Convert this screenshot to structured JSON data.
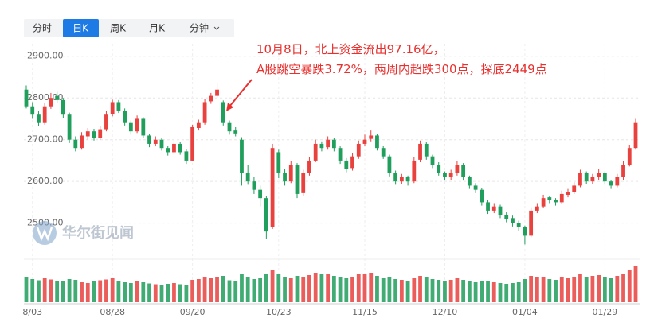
{
  "tabs": [
    "分时",
    "日K",
    "周K",
    "月K",
    "分钟"
  ],
  "watermark": "华尔街见闻",
  "chart_data": {
    "type": "candlestick",
    "annotation": [
      "10月8日，北上资金流出97.16亿，",
      "A股跳空暴跌3.72%，两周内超跌300点，探底2449点"
    ],
    "up_color": "#e8413e",
    "down_color": "#1f9e5c",
    "grid": true,
    "ylim": [
      2425,
      2930
    ],
    "yticks": [
      {
        "value": 2500,
        "label": "2500.00"
      },
      {
        "value": 2600,
        "label": "2600.00"
      },
      {
        "value": 2700,
        "label": "2700.00"
      },
      {
        "value": 2800,
        "label": "2800.00"
      },
      {
        "value": 2900,
        "label": "2900.00"
      }
    ],
    "vlim": [
      0,
      100
    ],
    "categories": [
      null,
      "8/03",
      null,
      null,
      null,
      null,
      null,
      null,
      null,
      null,
      null,
      null,
      null,
      null,
      "08/28",
      null,
      null,
      null,
      null,
      null,
      null,
      null,
      null,
      null,
      null,
      null,
      null,
      "09/20",
      null,
      null,
      null,
      null,
      null,
      null,
      null,
      null,
      null,
      null,
      null,
      null,
      null,
      "10/23",
      null,
      null,
      null,
      null,
      null,
      null,
      null,
      null,
      null,
      null,
      null,
      null,
      null,
      "11/15",
      null,
      null,
      null,
      null,
      null,
      null,
      null,
      null,
      null,
      null,
      null,
      null,
      "12/10",
      null,
      null,
      null,
      null,
      null,
      null,
      null,
      null,
      null,
      null,
      null,
      null,
      "01/04",
      null,
      null,
      null,
      null,
      null,
      null,
      null,
      null,
      null,
      null,
      null,
      null,
      "01/29",
      null,
      null,
      null,
      null,
      null
    ],
    "ohlc": [
      [
        2820,
        2830,
        2775,
        2780
      ],
      [
        2780,
        2790,
        2750,
        2760
      ],
      [
        2760,
        2768,
        2732,
        2740
      ],
      [
        2740,
        2788,
        2736,
        2780
      ],
      [
        2780,
        2812,
        2774,
        2800
      ],
      [
        2805,
        2815,
        2788,
        2795
      ],
      [
        2795,
        2800,
        2752,
        2760
      ],
      [
        2760,
        2765,
        2692,
        2700
      ],
      [
        2700,
        2708,
        2672,
        2680
      ],
      [
        2680,
        2718,
        2676,
        2710
      ],
      [
        2708,
        2728,
        2700,
        2720
      ],
      [
        2720,
        2726,
        2698,
        2705
      ],
      [
        2705,
        2732,
        2700,
        2725
      ],
      [
        2725,
        2768,
        2720,
        2760
      ],
      [
        2762,
        2796,
        2756,
        2790
      ],
      [
        2790,
        2795,
        2764,
        2770
      ],
      [
        2770,
        2775,
        2734,
        2740
      ],
      [
        2740,
        2746,
        2712,
        2720
      ],
      [
        2720,
        2758,
        2716,
        2750
      ],
      [
        2750,
        2754,
        2704,
        2710
      ],
      [
        2710,
        2714,
        2682,
        2690
      ],
      [
        2690,
        2708,
        2684,
        2700
      ],
      [
        2700,
        2704,
        2674,
        2680
      ],
      [
        2680,
        2686,
        2662,
        2670
      ],
      [
        2670,
        2697,
        2666,
        2690
      ],
      [
        2690,
        2694,
        2664,
        2670
      ],
      [
        2672,
        2678,
        2642,
        2650
      ],
      [
        2650,
        2736,
        2648,
        2730
      ],
      [
        2728,
        2748,
        2722,
        2740
      ],
      [
        2740,
        2798,
        2736,
        2790
      ],
      [
        2792,
        2812,
        2786,
        2805
      ],
      [
        2805,
        2836,
        2800,
        2820
      ],
      [
        2790,
        2794,
        2734,
        2740
      ],
      [
        2740,
        2746,
        2712,
        2720
      ],
      [
        2722,
        2730,
        2708,
        2715
      ],
      [
        2700,
        2706,
        2590,
        2620
      ],
      [
        2620,
        2640,
        2592,
        2600
      ],
      [
        2600,
        2610,
        2570,
        2580
      ],
      [
        2580,
        2590,
        2540,
        2560
      ],
      [
        2560,
        2565,
        2462,
        2480
      ],
      [
        2490,
        2690,
        2486,
        2680
      ],
      [
        2670,
        2676,
        2608,
        2620
      ],
      [
        2620,
        2630,
        2590,
        2600
      ],
      [
        2600,
        2648,
        2596,
        2640
      ],
      [
        2640,
        2644,
        2560,
        2570
      ],
      [
        2572,
        2628,
        2566,
        2620
      ],
      [
        2620,
        2658,
        2614,
        2650
      ],
      [
        2650,
        2700,
        2646,
        2690
      ],
      [
        2690,
        2696,
        2672,
        2680
      ],
      [
        2682,
        2708,
        2676,
        2700
      ],
      [
        2700,
        2704,
        2672,
        2680
      ],
      [
        2680,
        2684,
        2642,
        2650
      ],
      [
        2650,
        2656,
        2622,
        2630
      ],
      [
        2632,
        2668,
        2626,
        2660
      ],
      [
        2660,
        2698,
        2654,
        2690
      ],
      [
        2690,
        2712,
        2684,
        2700
      ],
      [
        2702,
        2722,
        2696,
        2710
      ],
      [
        2710,
        2714,
        2674,
        2680
      ],
      [
        2680,
        2686,
        2654,
        2660
      ],
      [
        2660,
        2664,
        2612,
        2620
      ],
      [
        2620,
        2626,
        2592,
        2600
      ],
      [
        2600,
        2618,
        2594,
        2610
      ],
      [
        2610,
        2614,
        2590,
        2600
      ],
      [
        2600,
        2658,
        2596,
        2650
      ],
      [
        2652,
        2698,
        2646,
        2690
      ],
      [
        2690,
        2694,
        2652,
        2660
      ],
      [
        2660,
        2664,
        2632,
        2640
      ],
      [
        2640,
        2646,
        2614,
        2620
      ],
      [
        2620,
        2624,
        2602,
        2610
      ],
      [
        2610,
        2628,
        2604,
        2620
      ],
      [
        2620,
        2648,
        2614,
        2640
      ],
      [
        2640,
        2644,
        2602,
        2610
      ],
      [
        2610,
        2614,
        2582,
        2590
      ],
      [
        2590,
        2596,
        2572,
        2580
      ],
      [
        2580,
        2584,
        2542,
        2550
      ],
      [
        2550,
        2556,
        2522,
        2530
      ],
      [
        2530,
        2548,
        2524,
        2540
      ],
      [
        2540,
        2544,
        2512,
        2520
      ],
      [
        2520,
        2526,
        2502,
        2510
      ],
      [
        2512,
        2518,
        2492,
        2500
      ],
      [
        2500,
        2506,
        2482,
        2490
      ],
      [
        2490,
        2494,
        2449,
        2470
      ],
      [
        2470,
        2538,
        2466,
        2530
      ],
      [
        2530,
        2548,
        2524,
        2540
      ],
      [
        2540,
        2568,
        2536,
        2560
      ],
      [
        2562,
        2566,
        2548,
        2555
      ],
      [
        2556,
        2560,
        2542,
        2550
      ],
      [
        2550,
        2578,
        2546,
        2570
      ],
      [
        2568,
        2582,
        2562,
        2575
      ],
      [
        2575,
        2598,
        2570,
        2590
      ],
      [
        2590,
        2628,
        2586,
        2620
      ],
      [
        2620,
        2624,
        2594,
        2600
      ],
      [
        2600,
        2618,
        2594,
        2610
      ],
      [
        2610,
        2630,
        2604,
        2620
      ],
      [
        2620,
        2624,
        2592,
        2600
      ],
      [
        2600,
        2604,
        2582,
        2590
      ],
      [
        2590,
        2618,
        2586,
        2610
      ],
      [
        2610,
        2648,
        2604,
        2640
      ],
      [
        2640,
        2688,
        2636,
        2680
      ],
      [
        2680,
        2750,
        2676,
        2740
      ]
    ],
    "volume": [
      62,
      58,
      55,
      60,
      57,
      54,
      52,
      58,
      56,
      50,
      48,
      52,
      55,
      57,
      60,
      54,
      50,
      48,
      52,
      50,
      47,
      45,
      44,
      46,
      48,
      45,
      44,
      56,
      58,
      62,
      60,
      64,
      66,
      55,
      52,
      70,
      64,
      58,
      60,
      72,
      80,
      72,
      62,
      60,
      66,
      64,
      68,
      74,
      70,
      72,
      66,
      62,
      60,
      64,
      70,
      72,
      74,
      66,
      60,
      62,
      58,
      56,
      54,
      60,
      66,
      62,
      58,
      56,
      54,
      56,
      60,
      56,
      52,
      50,
      54,
      52,
      50,
      48,
      46,
      48,
      50,
      58,
      66,
      62,
      64,
      58,
      56,
      62,
      60,
      64,
      70,
      64,
      66,
      68,
      62,
      60,
      66,
      72,
      80,
      92
    ]
  }
}
